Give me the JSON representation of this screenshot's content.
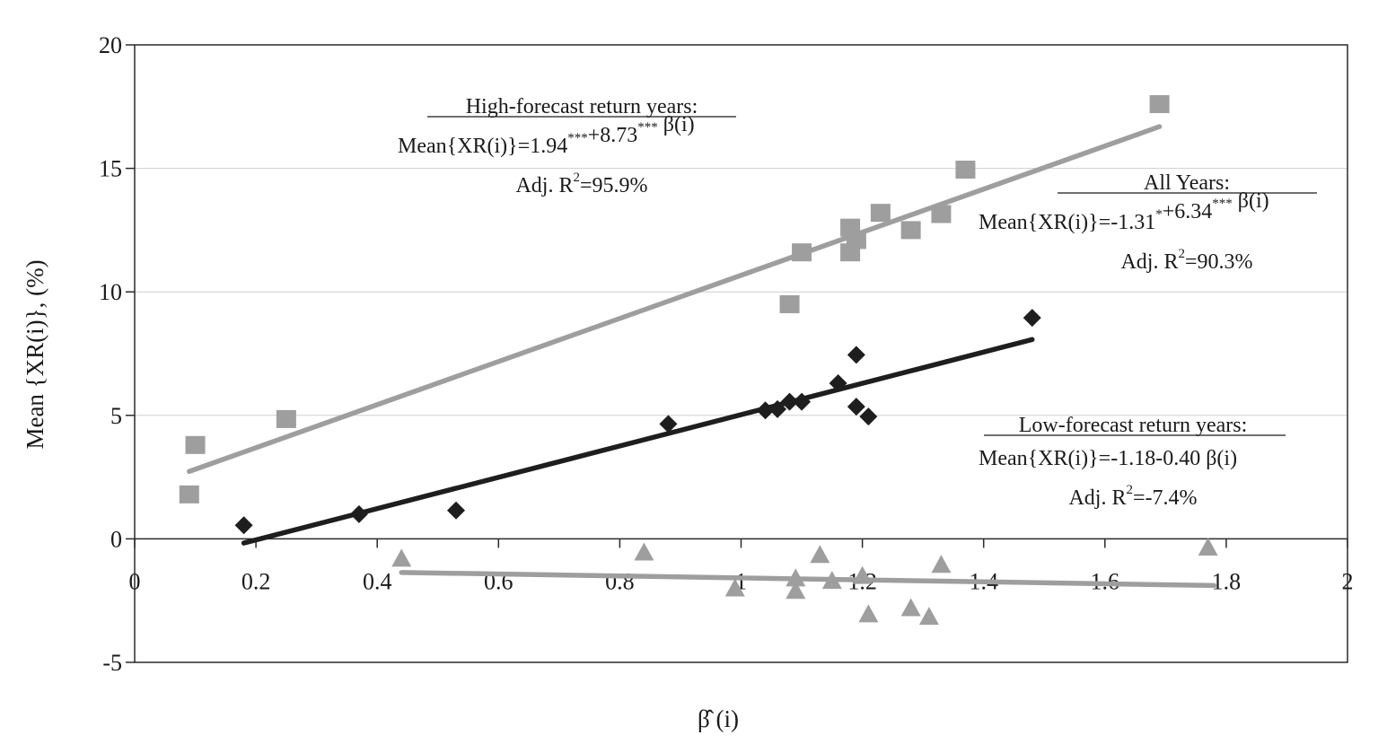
{
  "chart_data": {
    "type": "scatter",
    "xlabel": "β̂ (i)",
    "ylabel": "Mean {XR(i)}, (%)",
    "xlim": [
      0,
      2
    ],
    "ylim": [
      -5,
      20
    ],
    "x_ticks": [
      "0",
      "0.2",
      "0.4",
      "0.6",
      "0.8",
      "1",
      "1.2",
      "1.4",
      "1.6",
      "1.8",
      "2"
    ],
    "y_ticks": [
      "-5",
      "0",
      "5",
      "10",
      "15",
      "20"
    ],
    "grid": "horizontal",
    "series": [
      {
        "key": "high",
        "marker": "square",
        "color": "#9e9e9e",
        "points": [
          {
            "x": 0.09,
            "y": 1.8
          },
          {
            "x": 0.1,
            "y": 3.8
          },
          {
            "x": 0.25,
            "y": 4.85
          },
          {
            "x": 1.08,
            "y": 9.5
          },
          {
            "x": 1.1,
            "y": 11.6
          },
          {
            "x": 1.18,
            "y": 12.6
          },
          {
            "x": 1.18,
            "y": 11.6
          },
          {
            "x": 1.19,
            "y": 12.1
          },
          {
            "x": 1.23,
            "y": 13.2
          },
          {
            "x": 1.28,
            "y": 12.5
          },
          {
            "x": 1.33,
            "y": 13.15
          },
          {
            "x": 1.37,
            "y": 14.95
          },
          {
            "x": 1.69,
            "y": 17.6
          }
        ],
        "fit": {
          "x": [
            0.09,
            1.69
          ],
          "y": [
            2.73,
            16.69
          ]
        }
      },
      {
        "key": "all",
        "marker": "diamond",
        "color": "#1e1e1e",
        "points": [
          {
            "x": 0.18,
            "y": 0.55
          },
          {
            "x": 0.37,
            "y": 1.0
          },
          {
            "x": 0.53,
            "y": 1.15
          },
          {
            "x": 0.88,
            "y": 4.65
          },
          {
            "x": 1.04,
            "y": 5.2
          },
          {
            "x": 1.06,
            "y": 5.25
          },
          {
            "x": 1.08,
            "y": 5.55
          },
          {
            "x": 1.1,
            "y": 5.55
          },
          {
            "x": 1.16,
            "y": 6.3
          },
          {
            "x": 1.19,
            "y": 7.45
          },
          {
            "x": 1.19,
            "y": 5.35
          },
          {
            "x": 1.21,
            "y": 4.95
          },
          {
            "x": 1.48,
            "y": 8.95
          }
        ],
        "fit": {
          "x": [
            0.18,
            1.48
          ],
          "y": [
            -0.17,
            8.07
          ]
        }
      },
      {
        "key": "low",
        "marker": "triangle",
        "color": "#9e9e9e",
        "points": [
          {
            "x": 0.44,
            "y": -0.8
          },
          {
            "x": 0.84,
            "y": -0.55
          },
          {
            "x": 0.99,
            "y": -2.0
          },
          {
            "x": 1.09,
            "y": -2.1
          },
          {
            "x": 1.09,
            "y": -1.6
          },
          {
            "x": 1.13,
            "y": -0.65
          },
          {
            "x": 1.15,
            "y": -1.7
          },
          {
            "x": 1.2,
            "y": -1.5
          },
          {
            "x": 1.21,
            "y": -3.05
          },
          {
            "x": 1.28,
            "y": -2.8
          },
          {
            "x": 1.31,
            "y": -3.15
          },
          {
            "x": 1.33,
            "y": -1.05
          },
          {
            "x": 1.77,
            "y": -0.35
          }
        ],
        "fit": {
          "x": [
            0.44,
            1.78
          ],
          "y": [
            -1.36,
            -1.89
          ]
        }
      }
    ],
    "annotations": [
      {
        "key": "high",
        "title": "High-forecast return years:",
        "eq_a": "Mean{XR(i)}=1.94",
        "eq_a_sup": "***",
        "eq_b": "+8.73",
        "eq_b_sup": "***",
        "eq_c": "β(i)",
        "r2_a": "Adj. R",
        "r2_sup": "2",
        "r2_b": "=95.9%"
      },
      {
        "key": "all",
        "title": "All Years:",
        "eq_a": "Mean{XR(i)}=-1.31",
        "eq_a_sup": "*",
        "eq_b": "+6.34",
        "eq_b_sup": "***",
        "eq_c": "β(i)",
        "r2_a": "Adj. R",
        "r2_sup": "2",
        "r2_b": "=90.3%"
      },
      {
        "key": "low",
        "title": "Low-forecast return years:",
        "eq_a": "Mean{XR(i)}=-1.18-0.40",
        "eq_a_sup": "",
        "eq_b": "",
        "eq_b_sup": "",
        "eq_c": "β(i)",
        "r2_a": "Adj. R",
        "r2_sup": "2",
        "r2_b": "=-7.4%"
      }
    ]
  }
}
